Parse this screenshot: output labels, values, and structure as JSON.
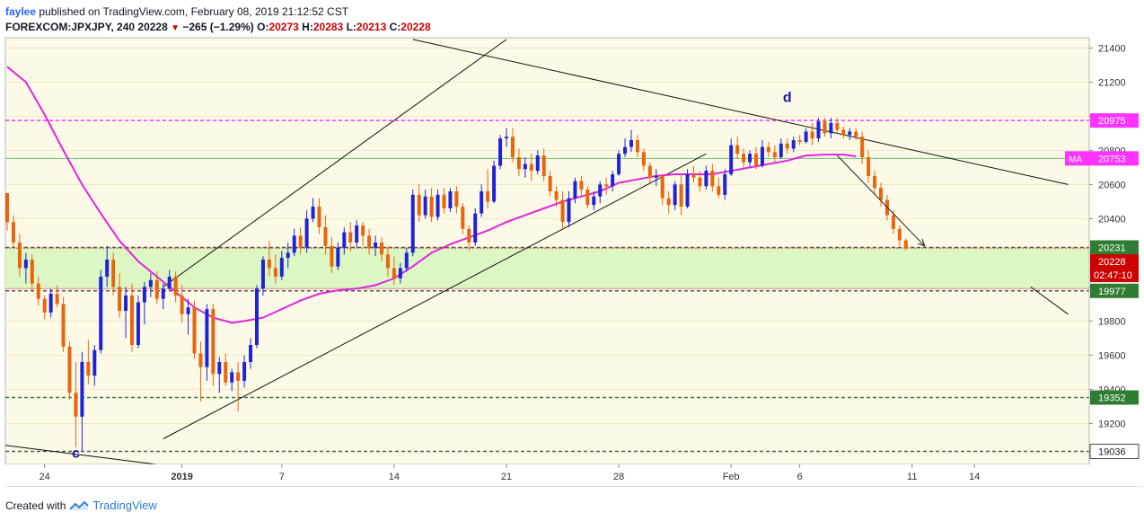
{
  "header": {
    "user": "faylee",
    "published_text": "published on TradingView.com, February 08, 2019 21:12:52 CST",
    "symbol": "FOREXCOM:JPXJPY, 240",
    "last": "20228",
    "change": "−265 (−1.29%)",
    "o_label": "O:",
    "o_value": "20273",
    "h_label": "H:",
    "h_value": "20283",
    "l_label": "L:",
    "l_value": "20213",
    "c_label": "C:",
    "c_value": "20228"
  },
  "footer": {
    "created_with": "Created with",
    "brand": "TradingView"
  },
  "colors": {
    "background": "#fcfae6",
    "support_zone": "#ddf7c4",
    "ma": "#e024e0",
    "up_candle": "#1f23d8",
    "down_candle": "#e8650e",
    "price_tag": "#cc0000",
    "green_tag": "#2e7d32",
    "magenta_tag": "#ff33ff"
  },
  "chart_data": {
    "type": "candlestick",
    "ylim": [
      18960,
      21460
    ],
    "y_ticks": [
      19200,
      19400,
      19600,
      19800,
      20000,
      20200,
      20400,
      20600,
      20800,
      21000,
      21200,
      21400
    ],
    "x_ticks": [
      {
        "label": "24",
        "bar": 6
      },
      {
        "label": "2019",
        "bar": 28
      },
      {
        "label": "7",
        "bar": 44
      },
      {
        "label": "14",
        "bar": 62
      },
      {
        "label": "21",
        "bar": 80
      },
      {
        "label": "28",
        "bar": 98
      },
      {
        "label": "Feb",
        "bar": 116
      },
      {
        "label": "6",
        "bar": 127
      },
      {
        "label": "11",
        "bar": 145
      },
      {
        "label": "14",
        "bar": 155
      }
    ],
    "price_levels": [
      {
        "label": "20975",
        "value": 20975,
        "style": "magenta-dash",
        "tag": "magenta"
      },
      {
        "label": "20231",
        "value": 20231,
        "style": "dark-dash",
        "tag": "green"
      },
      {
        "label": "19977",
        "value": 19977,
        "style": "dark-dash",
        "tag": "green"
      },
      {
        "label": "19352",
        "value": 19352,
        "style": "green-dash",
        "tag": "green"
      },
      {
        "label": "19036",
        "value": 19036,
        "style": "dark-dash",
        "tag": "dark"
      }
    ],
    "ma_tag": {
      "label": "MA",
      "value": "20753",
      "price": 20753
    },
    "last_price": {
      "label": "20228",
      "price": 20228
    },
    "countdown": "02:47:10",
    "zone": [
      19990,
      20235
    ],
    "annotations": [
      {
        "text": "c",
        "bar": 11,
        "price": 19000
      },
      {
        "text": "d",
        "bar": 125,
        "price": 21085
      }
    ],
    "trendlines": [
      {
        "from": [
          -1,
          19075
        ],
        "to": [
          25,
          18955
        ]
      },
      {
        "from": [
          65,
          21450
        ],
        "to": [
          170,
          20600
        ]
      },
      {
        "from": [
          25,
          19110
        ],
        "to": [
          112,
          20780
        ]
      },
      {
        "from": [
          25,
          20000
        ],
        "to": [
          80,
          21450
        ]
      },
      {
        "from": [
          164,
          20000
        ],
        "to": [
          170,
          19840
        ]
      }
    ],
    "arrow": {
      "from": [
        133,
        20770
      ],
      "to": [
        147,
        20240
      ]
    },
    "ohlc": [
      [
        20550,
        20550,
        20330,
        20380
      ],
      [
        20380,
        20420,
        20230,
        20260
      ],
      [
        20260,
        20310,
        20060,
        20110
      ],
      [
        20110,
        20200,
        20020,
        20160
      ],
      [
        20160,
        20190,
        19980,
        20020
      ],
      [
        20020,
        20060,
        19890,
        19930
      ],
      [
        19930,
        19950,
        19810,
        19850
      ],
      [
        19850,
        19990,
        19820,
        19960
      ],
      [
        19960,
        20010,
        19880,
        19900
      ],
      [
        19900,
        19940,
        19620,
        19650
      ],
      [
        19650,
        19680,
        19340,
        19380
      ],
      [
        19380,
        19560,
        19060,
        19240
      ],
      [
        19240,
        19620,
        19040,
        19560
      ],
      [
        19560,
        19690,
        19430,
        19480
      ],
      [
        19480,
        19660,
        19420,
        19630
      ],
      [
        19630,
        20100,
        19610,
        20060
      ],
      [
        20060,
        20240,
        20000,
        20160
      ],
      [
        20160,
        20200,
        19950,
        20000
      ],
      [
        20000,
        20080,
        19820,
        19860
      ],
      [
        19860,
        20000,
        19700,
        19950
      ],
      [
        19950,
        20020,
        19620,
        19660
      ],
      [
        19660,
        19950,
        19640,
        19910
      ],
      [
        19910,
        20030,
        19780,
        20000
      ],
      [
        20000,
        20080,
        19940,
        20040
      ],
      [
        20040,
        20090,
        19900,
        19930
      ],
      [
        19930,
        20020,
        19870,
        19990
      ],
      [
        19990,
        20100,
        19980,
        20060
      ],
      [
        20060,
        20090,
        19910,
        19950
      ],
      [
        19950,
        20010,
        19790,
        19840
      ],
      [
        19840,
        19930,
        19720,
        19880
      ],
      [
        19880,
        19920,
        19580,
        19610
      ],
      [
        19610,
        19680,
        19330,
        19530
      ],
      [
        19530,
        19900,
        19450,
        19870
      ],
      [
        19870,
        19900,
        19420,
        19490
      ],
      [
        19490,
        19590,
        19380,
        19560
      ],
      [
        19560,
        19610,
        19420,
        19440
      ],
      [
        19440,
        19520,
        19390,
        19500
      ],
      [
        19500,
        19560,
        19270,
        19450
      ],
      [
        19450,
        19600,
        19410,
        19560
      ],
      [
        19560,
        19700,
        19520,
        19660
      ],
      [
        19660,
        20010,
        19640,
        19990
      ],
      [
        19990,
        20180,
        19950,
        20160
      ],
      [
        20160,
        20270,
        20060,
        20110
      ],
      [
        20110,
        20190,
        20020,
        20060
      ],
      [
        20060,
        20210,
        20040,
        20170
      ],
      [
        20170,
        20260,
        20110,
        20200
      ],
      [
        20200,
        20340,
        20180,
        20300
      ],
      [
        20300,
        20350,
        20190,
        20230
      ],
      [
        20230,
        20450,
        20200,
        20400
      ],
      [
        20400,
        20520,
        20380,
        20470
      ],
      [
        20470,
        20520,
        20310,
        20350
      ],
      [
        20350,
        20420,
        20190,
        20240
      ],
      [
        20240,
        20290,
        20080,
        20120
      ],
      [
        20120,
        20260,
        20100,
        20230
      ],
      [
        20230,
        20350,
        20190,
        20320
      ],
      [
        20320,
        20380,
        20210,
        20260
      ],
      [
        20260,
        20390,
        20230,
        20360
      ],
      [
        20360,
        20380,
        20240,
        20300
      ],
      [
        20300,
        20340,
        20190,
        20230
      ],
      [
        20230,
        20300,
        20180,
        20260
      ],
      [
        20260,
        20290,
        20150,
        20190
      ],
      [
        20190,
        20240,
        20060,
        20110
      ],
      [
        20110,
        20180,
        20010,
        20050
      ],
      [
        20050,
        20140,
        20020,
        20110
      ],
      [
        20110,
        20230,
        20090,
        20200
      ],
      [
        20200,
        20570,
        20180,
        20540
      ],
      [
        20540,
        20600,
        20380,
        20420
      ],
      [
        20420,
        20570,
        20400,
        20530
      ],
      [
        20530,
        20580,
        20380,
        20410
      ],
      [
        20410,
        20570,
        20390,
        20540
      ],
      [
        20540,
        20580,
        20430,
        20460
      ],
      [
        20460,
        20580,
        20440,
        20560
      ],
      [
        20560,
        20590,
        20430,
        20470
      ],
      [
        20470,
        20490,
        20310,
        20340
      ],
      [
        20340,
        20360,
        20210,
        20260
      ],
      [
        20260,
        20460,
        20240,
        20430
      ],
      [
        20430,
        20600,
        20410,
        20560
      ],
      [
        20560,
        20690,
        20460,
        20500
      ],
      [
        20500,
        20740,
        20490,
        20710
      ],
      [
        20710,
        20890,
        20690,
        20870
      ],
      [
        20870,
        20930,
        20820,
        20880
      ],
      [
        20880,
        20930,
        20730,
        20760
      ],
      [
        20760,
        20810,
        20650,
        20690
      ],
      [
        20690,
        20760,
        20640,
        20720
      ],
      [
        20720,
        20780,
        20620,
        20680
      ],
      [
        20680,
        20800,
        20660,
        20770
      ],
      [
        20770,
        20810,
        20620,
        20650
      ],
      [
        20650,
        20680,
        20530,
        20560
      ],
      [
        20560,
        20590,
        20470,
        20510
      ],
      [
        20510,
        20560,
        20340,
        20380
      ],
      [
        20380,
        20560,
        20350,
        20520
      ],
      [
        20520,
        20640,
        20490,
        20620
      ],
      [
        20620,
        20650,
        20530,
        20570
      ],
      [
        20570,
        20590,
        20460,
        20480
      ],
      [
        20480,
        20560,
        20450,
        20530
      ],
      [
        20530,
        20620,
        20490,
        20600
      ],
      [
        20600,
        20640,
        20540,
        20590
      ],
      [
        20590,
        20680,
        20560,
        20660
      ],
      [
        20660,
        20800,
        20650,
        20780
      ],
      [
        20780,
        20870,
        20760,
        20820
      ],
      [
        20820,
        20920,
        20790,
        20860
      ],
      [
        20860,
        20890,
        20760,
        20790
      ],
      [
        20790,
        20810,
        20680,
        20710
      ],
      [
        20710,
        20730,
        20610,
        20640
      ],
      [
        20640,
        20690,
        20590,
        20650
      ],
      [
        20650,
        20660,
        20480,
        20520
      ],
      [
        20520,
        20560,
        20430,
        20480
      ],
      [
        20480,
        20620,
        20450,
        20600
      ],
      [
        20600,
        20660,
        20420,
        20470
      ],
      [
        20470,
        20690,
        20460,
        20660
      ],
      [
        20660,
        20710,
        20610,
        20640
      ],
      [
        20640,
        20680,
        20560,
        20590
      ],
      [
        20590,
        20710,
        20570,
        20680
      ],
      [
        20680,
        20720,
        20560,
        20590
      ],
      [
        20590,
        20640,
        20520,
        20540
      ],
      [
        20540,
        20690,
        20510,
        20660
      ],
      [
        20660,
        20870,
        20650,
        20830
      ],
      [
        20830,
        20880,
        20750,
        20780
      ],
      [
        20780,
        20810,
        20700,
        20730
      ],
      [
        20730,
        20800,
        20700,
        20780
      ],
      [
        20780,
        20820,
        20690,
        20710
      ],
      [
        20710,
        20860,
        20700,
        20820
      ],
      [
        20820,
        20850,
        20760,
        20790
      ],
      [
        20790,
        20830,
        20730,
        20760
      ],
      [
        20760,
        20870,
        20750,
        20840
      ],
      [
        20840,
        20870,
        20780,
        20810
      ],
      [
        20810,
        20880,
        20790,
        20860
      ],
      [
        20860,
        20890,
        20830,
        20850
      ],
      [
        20850,
        20930,
        20840,
        20910
      ],
      [
        20910,
        20960,
        20830,
        20870
      ],
      [
        20870,
        20990,
        20850,
        20970
      ],
      [
        20970,
        20990,
        20880,
        20900
      ],
      [
        20900,
        20990,
        20870,
        20960
      ],
      [
        20960,
        20990,
        20900,
        20920
      ],
      [
        20920,
        20940,
        20870,
        20890
      ],
      [
        20890,
        20930,
        20860,
        20910
      ],
      [
        20910,
        20930,
        20860,
        20880
      ],
      [
        20880,
        20910,
        20720,
        20760
      ],
      [
        20760,
        20800,
        20610,
        20650
      ],
      [
        20650,
        20680,
        20540,
        20580
      ],
      [
        20580,
        20610,
        20470,
        20510
      ],
      [
        20510,
        20540,
        20390,
        20420
      ],
      [
        20420,
        20450,
        20310,
        20340
      ],
      [
        20340,
        20360,
        20240,
        20273
      ],
      [
        20273,
        20283,
        20213,
        20228
      ]
    ],
    "ma": [
      [
        0,
        21290
      ],
      [
        3,
        21200
      ],
      [
        6,
        21010
      ],
      [
        9,
        20800
      ],
      [
        12,
        20600
      ],
      [
        15,
        20430
      ],
      [
        18,
        20270
      ],
      [
        21,
        20150
      ],
      [
        24,
        20060
      ],
      [
        27,
        19970
      ],
      [
        30,
        19880
      ],
      [
        33,
        19820
      ],
      [
        36,
        19790
      ],
      [
        38,
        19800
      ],
      [
        41,
        19820
      ],
      [
        44,
        19870
      ],
      [
        47,
        19920
      ],
      [
        50,
        19960
      ],
      [
        53,
        19980
      ],
      [
        56,
        19990
      ],
      [
        59,
        20010
      ],
      [
        62,
        20050
      ],
      [
        65,
        20120
      ],
      [
        68,
        20200
      ],
      [
        71,
        20250
      ],
      [
        74,
        20290
      ],
      [
        77,
        20330
      ],
      [
        80,
        20380
      ],
      [
        83,
        20420
      ],
      [
        86,
        20460
      ],
      [
        89,
        20500
      ],
      [
        92,
        20530
      ],
      [
        95,
        20560
      ],
      [
        98,
        20610
      ],
      [
        101,
        20630
      ],
      [
        104,
        20650
      ],
      [
        107,
        20660
      ],
      [
        110,
        20660
      ],
      [
        113,
        20660
      ],
      [
        116,
        20680
      ],
      [
        119,
        20700
      ],
      [
        122,
        20720
      ],
      [
        125,
        20740
      ],
      [
        128,
        20770
      ],
      [
        131,
        20775
      ],
      [
        134,
        20775
      ],
      [
        136,
        20765
      ]
    ]
  }
}
